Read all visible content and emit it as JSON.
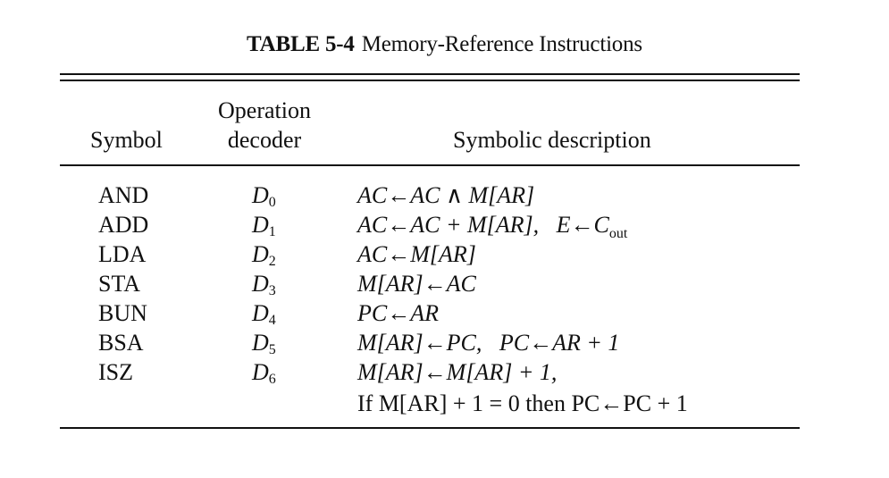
{
  "caption": {
    "tag": "TABLE 5-4",
    "title": "Memory-Reference Instructions"
  },
  "headers": {
    "symbol": "Symbol",
    "operation_line1": "Operation",
    "operation_line2": "decoder",
    "description": "Symbolic description"
  },
  "rows": [
    {
      "symbol": "AND",
      "decoder": "D",
      "decoder_sub": "0",
      "description": "AC←AC ∧ M[AR]"
    },
    {
      "symbol": "ADD",
      "decoder": "D",
      "decoder_sub": "1",
      "description": "AC←AC + M[AR],   E←C",
      "description_sub": "out"
    },
    {
      "symbol": "LDA",
      "decoder": "D",
      "decoder_sub": "2",
      "description": "AC←M[AR]"
    },
    {
      "symbol": "STA",
      "decoder": "D",
      "decoder_sub": "3",
      "description": "M[AR]←AC"
    },
    {
      "symbol": "BUN",
      "decoder": "D",
      "decoder_sub": "4",
      "description": "PC←AR"
    },
    {
      "symbol": "BSA",
      "decoder": "D",
      "decoder_sub": "5",
      "description": "M[AR]←PC,   PC←AR + 1"
    },
    {
      "symbol": "ISZ",
      "decoder": "D",
      "decoder_sub": "6",
      "description": "M[AR]←M[AR] + 1,"
    }
  ],
  "continuation": "If M[AR] + 1 = 0 then PC←PC + 1"
}
